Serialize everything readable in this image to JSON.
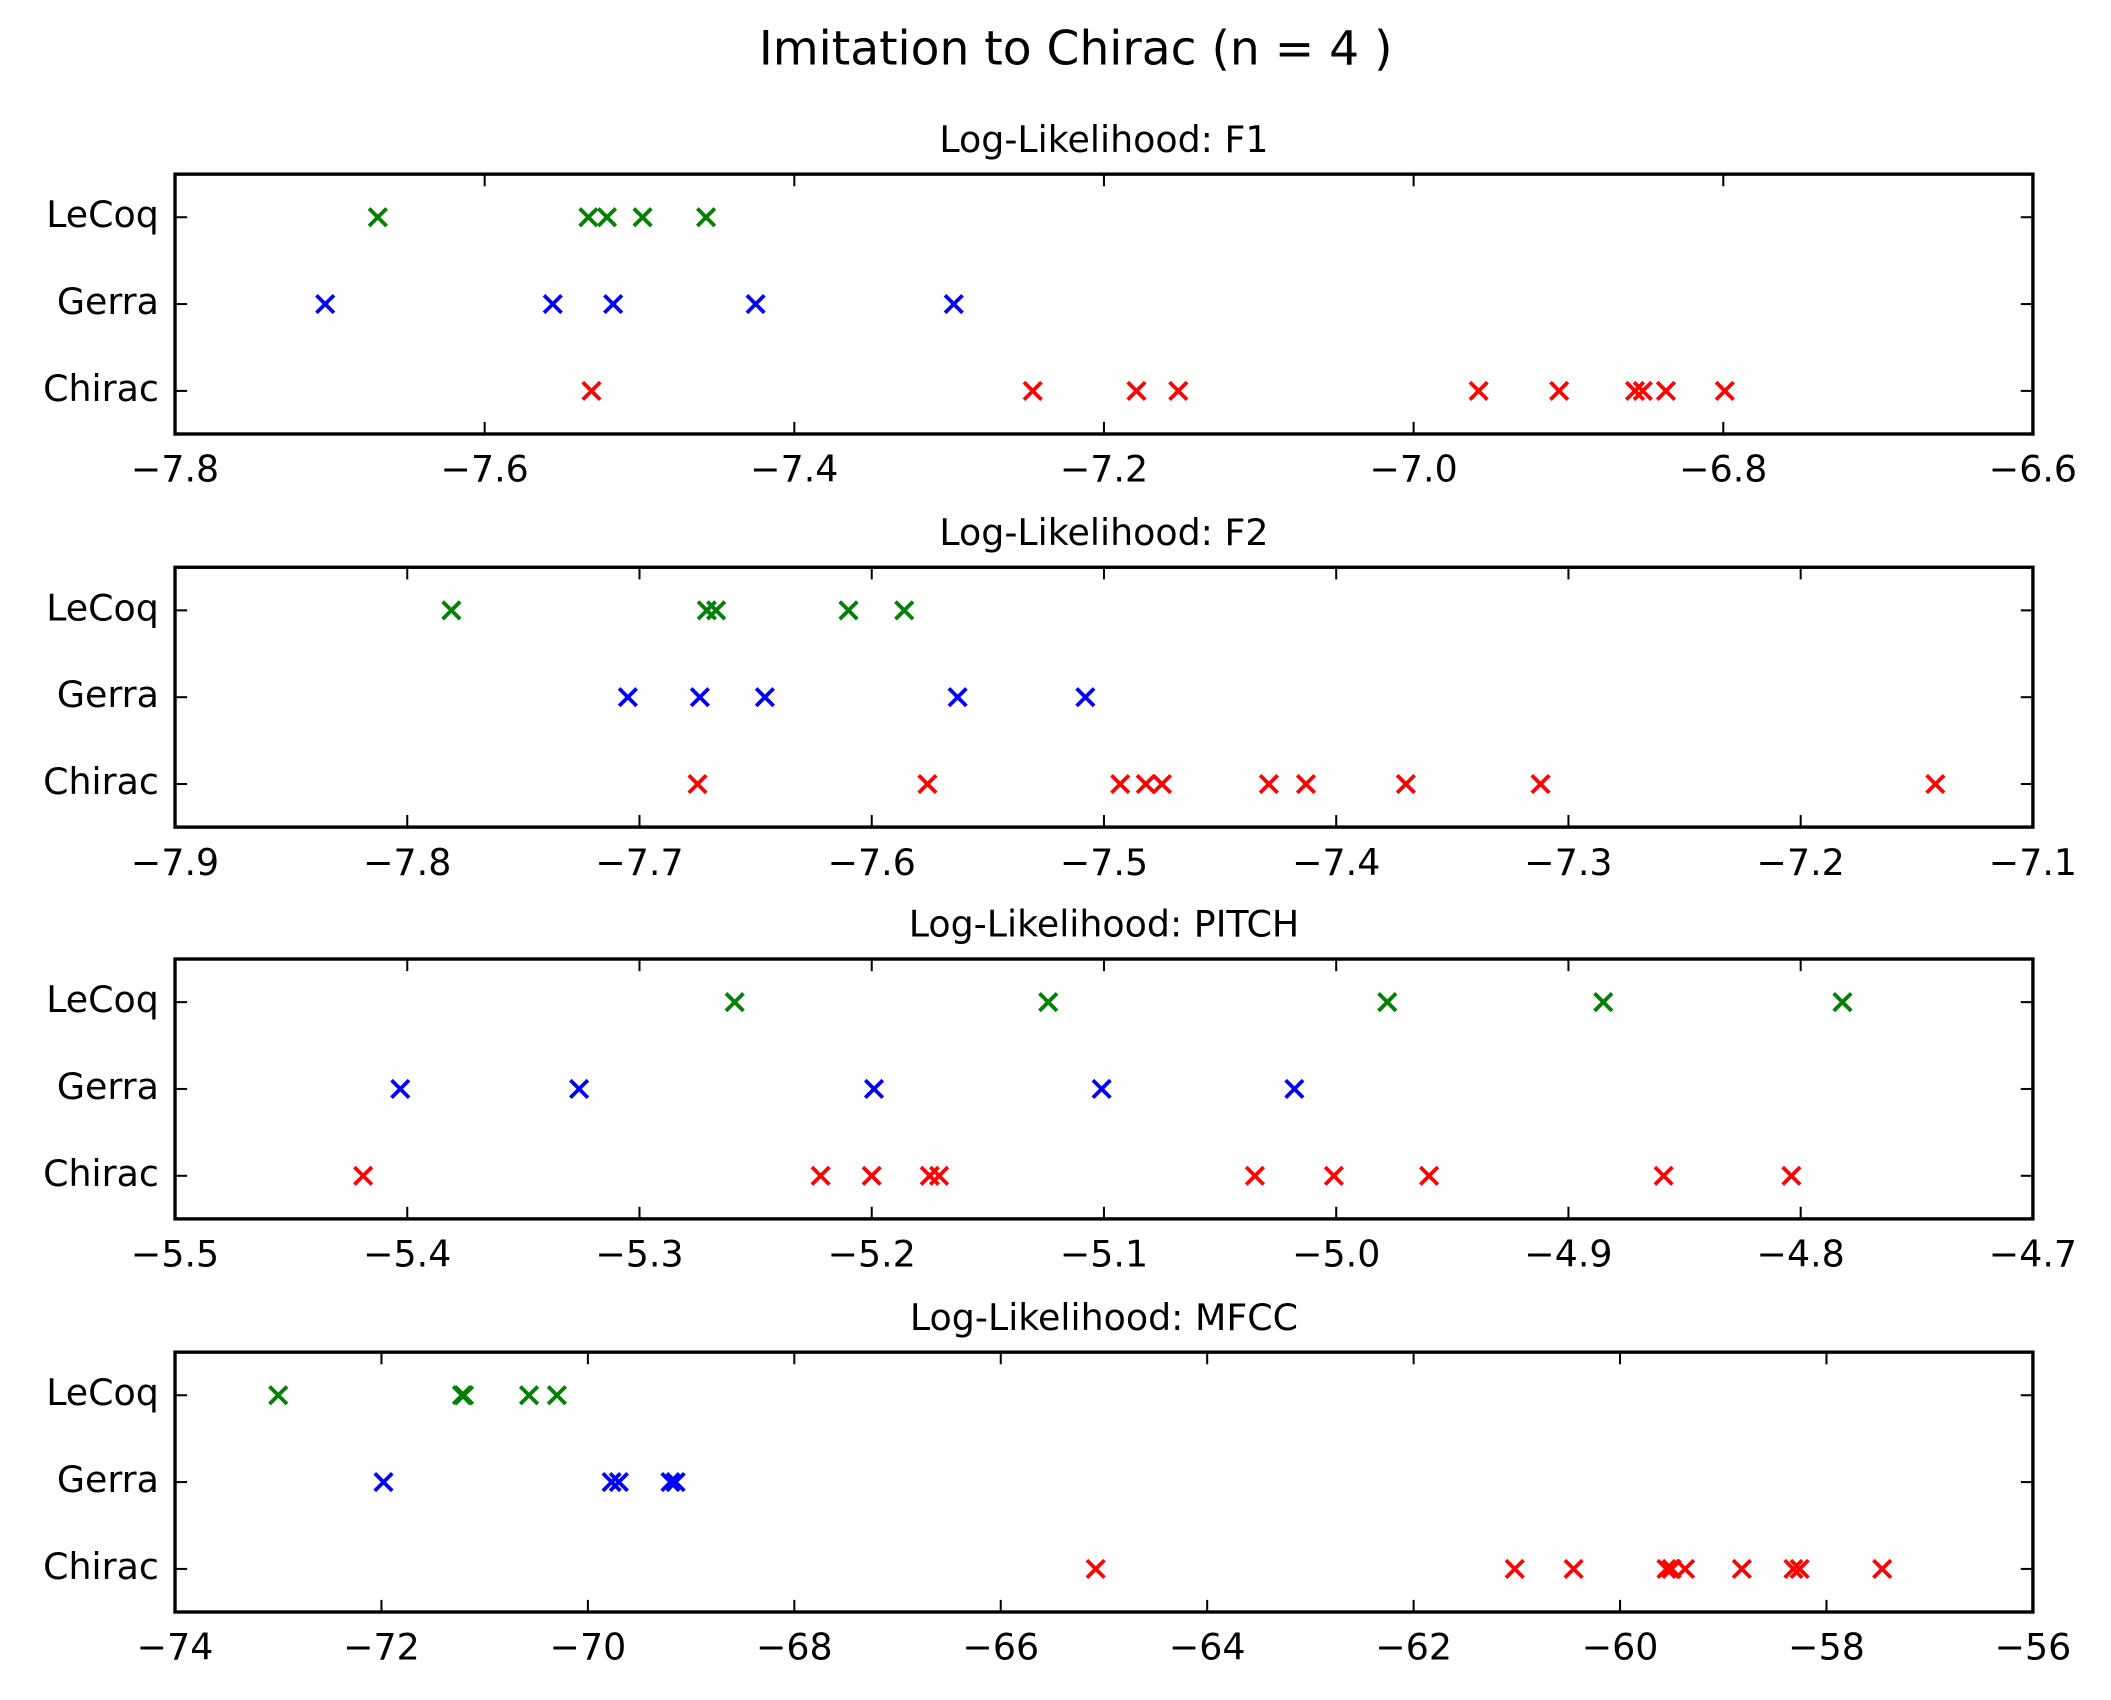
{
  "title": "Imitation to Chirac (n = 4 )",
  "chart_data": [
    {
      "type": "scatter",
      "title": "Log-Likelihood: F1",
      "marker": "x",
      "xlim": [
        -7.8,
        -6.6
      ],
      "xticks": [
        {
          "value": -7.8,
          "label": "−7.8"
        },
        {
          "value": -7.6,
          "label": "−7.6"
        },
        {
          "value": -7.4,
          "label": "−7.4"
        },
        {
          "value": -7.2,
          "label": "−7.2"
        },
        {
          "value": -7.0,
          "label": "−7.0"
        },
        {
          "value": -6.8,
          "label": "−6.8"
        },
        {
          "value": -6.6,
          "label": "−6.6"
        }
      ],
      "series": [
        {
          "name": "Chirac",
          "color": "#ff0000",
          "values": [
            -7.531,
            -7.246,
            -7.179,
            -7.152,
            -6.958,
            -6.906,
            -6.857,
            -6.852,
            -6.837,
            -6.799
          ]
        },
        {
          "name": "Gerra",
          "color": "#0000ff",
          "values": [
            -7.703,
            -7.556,
            -7.517,
            -7.425,
            -7.297
          ]
        },
        {
          "name": "LeCoq",
          "color": "#008000",
          "values": [
            -7.669,
            -7.533,
            -7.521,
            -7.498,
            -7.457
          ]
        }
      ]
    },
    {
      "type": "scatter",
      "title": "Log-Likelihood: F2",
      "marker": "x",
      "xlim": [
        -7.9,
        -7.1
      ],
      "xticks": [
        {
          "value": -7.9,
          "label": "−7.9"
        },
        {
          "value": -7.8,
          "label": "−7.8"
        },
        {
          "value": -7.7,
          "label": "−7.7"
        },
        {
          "value": -7.6,
          "label": "−7.6"
        },
        {
          "value": -7.5,
          "label": "−7.5"
        },
        {
          "value": -7.4,
          "label": "−7.4"
        },
        {
          "value": -7.3,
          "label": "−7.3"
        },
        {
          "value": -7.2,
          "label": "−7.2"
        },
        {
          "value": -7.1,
          "label": "−7.1"
        }
      ],
      "series": [
        {
          "name": "Chirac",
          "color": "#ff0000",
          "values": [
            -7.675,
            -7.576,
            -7.493,
            -7.482,
            -7.475,
            -7.429,
            -7.413,
            -7.37,
            -7.312,
            -7.142
          ]
        },
        {
          "name": "Gerra",
          "color": "#0000ff",
          "values": [
            -7.705,
            -7.674,
            -7.646,
            -7.563,
            -7.508
          ]
        },
        {
          "name": "LeCoq",
          "color": "#008000",
          "values": [
            -7.781,
            -7.671,
            -7.667,
            -7.61,
            -7.586
          ]
        }
      ]
    },
    {
      "type": "scatter",
      "title": "Log-Likelihood: PITCH",
      "marker": "x",
      "xlim": [
        -5.5,
        -4.7
      ],
      "xticks": [
        {
          "value": -5.5,
          "label": "−5.5"
        },
        {
          "value": -5.4,
          "label": "−5.4"
        },
        {
          "value": -5.3,
          "label": "−5.3"
        },
        {
          "value": -5.2,
          "label": "−5.2"
        },
        {
          "value": -5.1,
          "label": "−5.1"
        },
        {
          "value": -5.0,
          "label": "−5.0"
        },
        {
          "value": -4.9,
          "label": "−4.9"
        },
        {
          "value": -4.8,
          "label": "−4.8"
        },
        {
          "value": -4.7,
          "label": "−4.7"
        }
      ],
      "series": [
        {
          "name": "Chirac",
          "color": "#ff0000",
          "values": [
            -5.419,
            -5.222,
            -5.2,
            -5.175,
            -5.171,
            -5.035,
            -5.001,
            -4.96,
            -4.859,
            -4.804
          ]
        },
        {
          "name": "Gerra",
          "color": "#0000ff",
          "values": [
            -5.403,
            -5.326,
            -5.199,
            -5.101,
            -5.018
          ]
        },
        {
          "name": "LeCoq",
          "color": "#008000",
          "values": [
            -5.259,
            -5.124,
            -4.978,
            -4.885,
            -4.782
          ]
        }
      ]
    },
    {
      "type": "scatter",
      "title": "Log-Likelihood: MFCC",
      "marker": "x",
      "xlim": [
        -74,
        -56
      ],
      "xticks": [
        {
          "value": -74,
          "label": "−74"
        },
        {
          "value": -72,
          "label": "−72"
        },
        {
          "value": -70,
          "label": "−70"
        },
        {
          "value": -68,
          "label": "−68"
        },
        {
          "value": -66,
          "label": "−66"
        },
        {
          "value": -64,
          "label": "−64"
        },
        {
          "value": -62,
          "label": "−62"
        },
        {
          "value": -60,
          "label": "−60"
        },
        {
          "value": -58,
          "label": "−58"
        },
        {
          "value": -56,
          "label": "−56"
        }
      ],
      "series": [
        {
          "name": "Chirac",
          "color": "#ff0000",
          "values": [
            -65.08,
            -61.02,
            -60.45,
            -59.55,
            -59.5,
            -59.37,
            -58.82,
            -58.32,
            -58.26,
            -57.46
          ]
        },
        {
          "name": "Gerra",
          "color": "#0000ff",
          "values": [
            -71.98,
            -69.77,
            -69.7,
            -69.2,
            -69.15
          ]
        },
        {
          "name": "LeCoq",
          "color": "#008000",
          "values": [
            -73.0,
            -71.22,
            -71.2,
            -70.57,
            -70.3
          ]
        }
      ]
    }
  ]
}
